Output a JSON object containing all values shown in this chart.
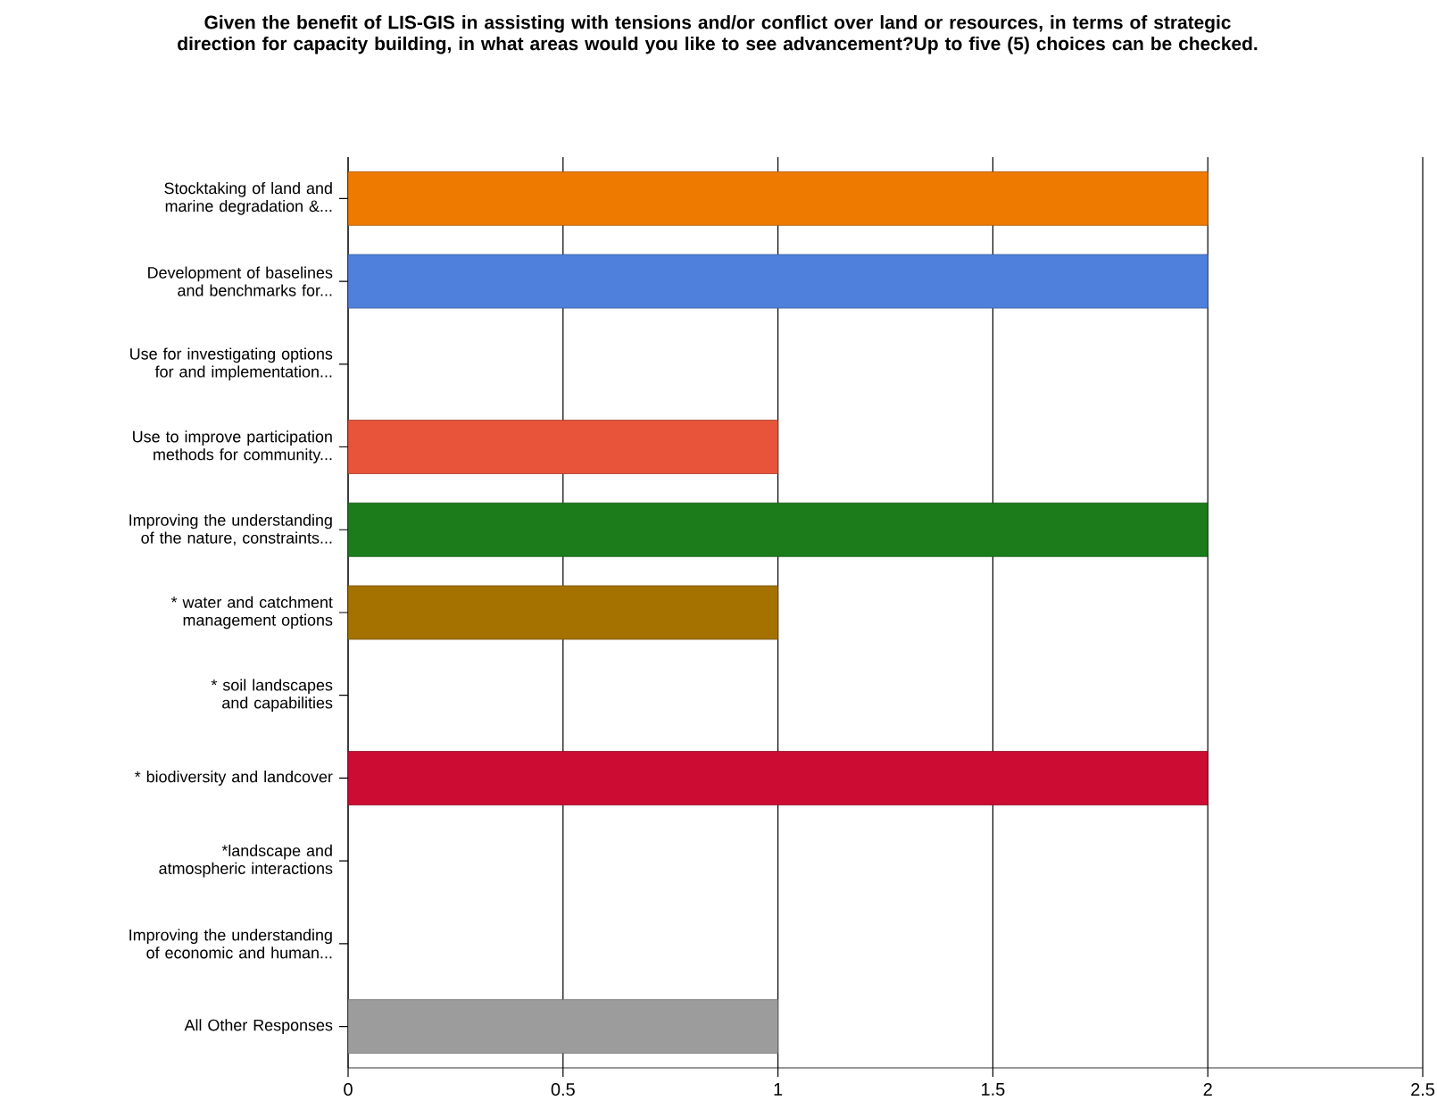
{
  "chart_data": {
    "type": "bar",
    "orientation": "horizontal",
    "title": "Given the benefit of LIS-GIS in assisting with tensions and/or conflict over land or resources, in terms of strategic direction for capacity building, in what areas would you like to see advancement?Up to five (5) choices can be checked.",
    "categories": [
      "Stocktaking of land and marine degradation &...",
      "Development of baselines and benchmarks for...",
      "Use for investigating options for and implementation...",
      "Use to improve participation methods for community...",
      "Improving the understanding of the nature, constraints...",
      "* water and catchment management options",
      "* soil landscapes and capabilities",
      "* biodiversity and landcover",
      "*landscape and atmospheric interactions",
      "Improving the understanding of economic and human...",
      "All Other Responses"
    ],
    "values": [
      2,
      2,
      0,
      1,
      2,
      1,
      0,
      2,
      0,
      0,
      1
    ],
    "colors": [
      "#ee7a00",
      "#4f80dc",
      null,
      "#e8543a",
      "#1c7c1c",
      "#a57200",
      null,
      "#cc0c32",
      null,
      null,
      "#9c9c9c"
    ],
    "xlim": [
      0,
      2.5
    ],
    "xticks": [
      0,
      0.5,
      1,
      1.5,
      2,
      2.5
    ],
    "grid": "x"
  }
}
